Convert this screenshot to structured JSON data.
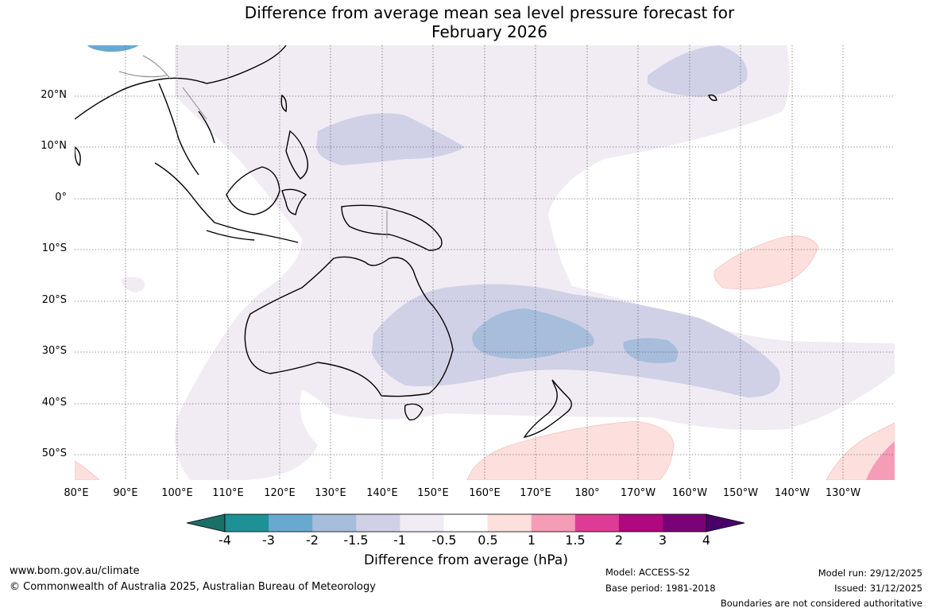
{
  "title_line1": "Difference from average mean sea level pressure forecast for",
  "title_line2": "February 2026",
  "latitude_labels": [
    "20°N",
    "10°N",
    "0°",
    "10°S",
    "20°S",
    "30°S",
    "40°S",
    "50°S"
  ],
  "longitude_labels": [
    "80°E",
    "90°E",
    "100°E",
    "110°E",
    "120°E",
    "130°E",
    "140°E",
    "150°E",
    "160°E",
    "170°E",
    "180°",
    "170°W",
    "160°W",
    "150°W",
    "140°W",
    "130°W"
  ],
  "colorbar": {
    "title": "Difference from average (hPa)",
    "tick_labels": [
      "-4",
      "-3",
      "-2",
      "-1.5",
      "-1",
      "-0.5",
      "0.5",
      "1",
      "1.5",
      "2",
      "3",
      "4"
    ],
    "colors": [
      "#1a7066",
      "#1d9196",
      "#68a9cf",
      "#a6bddb",
      "#d0d1e6",
      "#f1ebf4",
      "#ffffff",
      "#fde0dd",
      "#f59cb7",
      "#de3b96",
      "#b0087e",
      "#7a0178",
      "#49006a"
    ]
  },
  "footer": {
    "url": "www.bom.gov.au/climate",
    "copyright": "© Commonwealth of Australia 2025, Australian Bureau of Meteorology",
    "model": "Model: ACCESS-S2",
    "base_period": "Base period: 1981-2018",
    "model_run": "Model run: 29/12/2025",
    "issued": "Issued: 31/12/2025",
    "boundaries_note": "Boundaries are not considered authoritative"
  }
}
